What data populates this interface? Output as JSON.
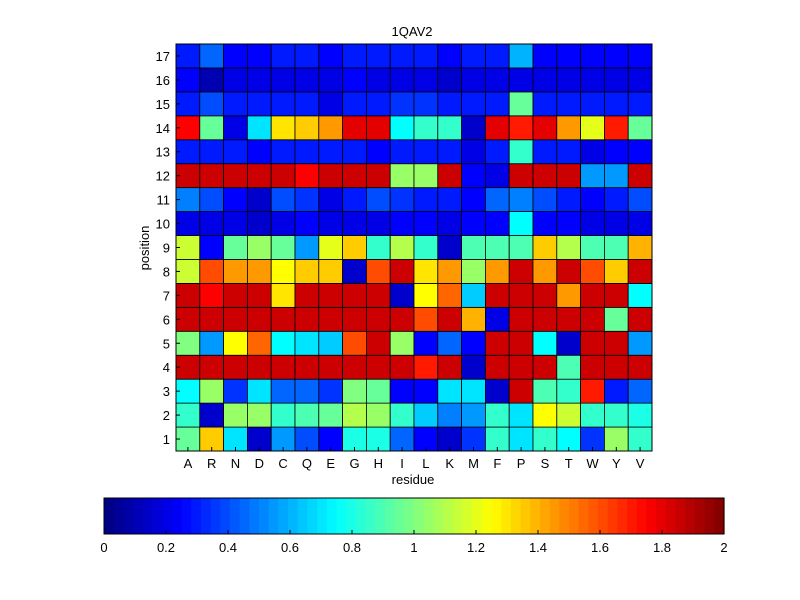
{
  "chart_data": {
    "type": "heatmap",
    "title": "1QAV2",
    "xlabel": "residue",
    "ylabel": "position",
    "x_categories": [
      "A",
      "R",
      "N",
      "D",
      "C",
      "Q",
      "E",
      "G",
      "H",
      "I",
      "L",
      "K",
      "M",
      "F",
      "P",
      "S",
      "T",
      "W",
      "Y",
      "V"
    ],
    "y_categories": [
      "1",
      "2",
      "3",
      "4",
      "5",
      "6",
      "7",
      "8",
      "9",
      "10",
      "11",
      "12",
      "13",
      "14",
      "15",
      "16",
      "17"
    ],
    "color_range": [
      0,
      2
    ],
    "colormap": "jet",
    "colorbar_ticks": [
      "0",
      "0.2",
      "0.4",
      "0.6",
      "0.8",
      "1",
      "1.2",
      "1.4",
      "1.6",
      "1.8",
      "2"
    ],
    "grid": true,
    "values": [
      [
        0.95,
        1.35,
        0.7,
        0.15,
        0.55,
        0.4,
        0.25,
        0.8,
        0.8,
        0.45,
        0.25,
        0.15,
        0.35,
        0.85,
        0.7,
        0.85,
        0.75,
        0.35,
        1.05,
        0.85
      ],
      [
        0.85,
        0.15,
        1.05,
        1.05,
        0.85,
        0.9,
        0.95,
        1.1,
        1.05,
        0.85,
        0.65,
        0.5,
        0.55,
        0.85,
        0.7,
        1.25,
        1.15,
        0.85,
        0.85,
        0.8
      ],
      [
        0.75,
        1.05,
        0.35,
        0.7,
        0.45,
        0.45,
        0.35,
        1.0,
        0.95,
        0.25,
        0.25,
        0.7,
        0.7,
        0.15,
        1.85,
        0.9,
        0.85,
        1.7,
        0.3,
        0.45
      ],
      [
        1.85,
        1.85,
        1.85,
        1.85,
        1.85,
        1.85,
        1.85,
        1.85,
        1.85,
        1.85,
        1.7,
        1.85,
        0.15,
        1.85,
        1.85,
        1.85,
        0.9,
        1.85,
        1.85,
        1.85
      ],
      [
        1.0,
        0.55,
        1.25,
        1.55,
        0.75,
        0.7,
        0.65,
        1.6,
        1.85,
        1.05,
        0.25,
        0.45,
        0.25,
        1.85,
        1.85,
        0.75,
        0.15,
        1.85,
        1.85,
        0.55
      ],
      [
        1.85,
        1.85,
        1.85,
        1.85,
        1.85,
        1.85,
        1.85,
        1.85,
        1.85,
        1.85,
        1.6,
        1.85,
        1.4,
        0.2,
        1.85,
        1.85,
        1.85,
        1.85,
        0.95,
        1.85
      ],
      [
        1.85,
        1.75,
        1.85,
        1.85,
        1.3,
        1.85,
        1.85,
        1.85,
        1.85,
        0.15,
        1.25,
        1.55,
        0.65,
        1.85,
        1.85,
        1.85,
        1.45,
        1.85,
        1.85,
        0.75
      ],
      [
        1.15,
        1.6,
        1.45,
        1.45,
        1.25,
        1.35,
        1.35,
        0.15,
        1.6,
        1.85,
        1.3,
        1.45,
        1.05,
        1.45,
        1.85,
        1.45,
        1.85,
        1.6,
        1.35,
        1.85
      ],
      [
        1.15,
        0.25,
        0.95,
        1.05,
        0.95,
        0.55,
        1.2,
        1.35,
        0.85,
        1.1,
        0.85,
        0.15,
        0.9,
        0.9,
        0.9,
        1.35,
        1.1,
        0.9,
        0.9,
        1.4
      ],
      [
        0.2,
        0.2,
        0.2,
        0.15,
        0.2,
        0.25,
        0.2,
        0.2,
        0.2,
        0.25,
        0.25,
        0.2,
        0.25,
        0.25,
        0.75,
        0.25,
        0.25,
        0.2,
        0.2,
        0.2
      ],
      [
        0.5,
        0.4,
        0.25,
        0.15,
        0.4,
        0.35,
        0.2,
        0.3,
        0.4,
        0.35,
        0.3,
        0.3,
        0.25,
        0.45,
        0.5,
        0.4,
        0.3,
        0.25,
        0.3,
        0.4
      ],
      [
        1.85,
        1.85,
        1.85,
        1.85,
        1.85,
        1.75,
        1.85,
        1.85,
        1.85,
        1.05,
        1.05,
        1.85,
        0.25,
        0.2,
        1.85,
        1.85,
        1.85,
        0.55,
        0.55,
        1.85
      ],
      [
        0.3,
        0.3,
        0.3,
        0.25,
        0.3,
        0.3,
        0.3,
        0.3,
        0.25,
        0.3,
        0.3,
        0.3,
        0.2,
        0.3,
        0.85,
        0.3,
        0.3,
        0.2,
        0.25,
        0.25
      ],
      [
        1.75,
        0.95,
        0.2,
        0.7,
        1.3,
        1.35,
        1.45,
        1.8,
        1.8,
        0.75,
        0.85,
        0.85,
        0.15,
        1.8,
        1.7,
        1.8,
        1.45,
        1.2,
        1.7,
        0.95
      ],
      [
        0.3,
        0.4,
        0.3,
        0.3,
        0.3,
        0.3,
        0.2,
        0.3,
        0.3,
        0.35,
        0.35,
        0.3,
        0.3,
        0.3,
        0.95,
        0.3,
        0.3,
        0.3,
        0.3,
        0.3
      ],
      [
        0.25,
        0.1,
        0.2,
        0.2,
        0.2,
        0.2,
        0.2,
        0.25,
        0.2,
        0.2,
        0.2,
        0.15,
        0.2,
        0.2,
        0.2,
        0.2,
        0.2,
        0.2,
        0.2,
        0.2
      ],
      [
        0.3,
        0.45,
        0.25,
        0.25,
        0.3,
        0.3,
        0.25,
        0.3,
        0.3,
        0.3,
        0.3,
        0.25,
        0.3,
        0.3,
        0.6,
        0.25,
        0.25,
        0.25,
        0.25,
        0.25
      ]
    ]
  }
}
